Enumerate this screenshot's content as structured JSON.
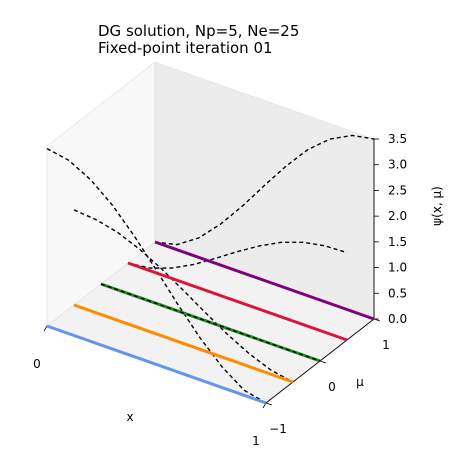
{
  "chart_data": {
    "type": "line",
    "title": "DG solution, Np=5, Ne=25",
    "subtitle": "Fixed-point iteration 01",
    "xlabel": "x",
    "ylabel": "μ",
    "zlabel": "ψ(x, μ)",
    "xlim": [
      0,
      1
    ],
    "ylim": [
      -1,
      1
    ],
    "zlim": [
      0,
      3.5
    ],
    "x_ticks": [
      "0",
      "1"
    ],
    "y_ticks": [
      "−1",
      "0",
      "1"
    ],
    "z_ticks": [
      "0.0",
      "0.5",
      "1.0",
      "1.5",
      "2.0",
      "2.5",
      "3.0",
      "3.5"
    ],
    "series": [
      {
        "mu": -1.0,
        "color": "#6495ED",
        "x": [
          0,
          1
        ],
        "z": [
          0,
          0
        ]
      },
      {
        "mu": -0.5,
        "color": "#FF8C00",
        "x": [
          0,
          1
        ],
        "z": [
          0,
          0
        ]
      },
      {
        "mu": 0.0,
        "color": "#228B22",
        "x": [
          0,
          1
        ],
        "z": [
          0,
          0
        ]
      },
      {
        "mu": 0.5,
        "color": "#DC143C",
        "x": [
          0,
          1
        ],
        "z": [
          0,
          0
        ]
      },
      {
        "mu": 1.0,
        "color": "#800080",
        "x": [
          0,
          1
        ],
        "z": [
          0,
          0
        ]
      }
    ],
    "exact_curves": [
      {
        "mu": -1.0,
        "x": [
          0.0,
          0.1,
          0.2,
          0.3,
          0.4,
          0.5,
          0.6,
          0.7,
          0.8,
          0.9,
          1.0
        ],
        "z": [
          3.45,
          3.37,
          3.14,
          2.79,
          2.34,
          1.83,
          1.3,
          0.81,
          0.4,
          0.1,
          0.0
        ]
      },
      {
        "mu": -0.5,
        "x": [
          0.0,
          0.1,
          0.2,
          0.3,
          0.4,
          0.5,
          0.6,
          0.7,
          0.8,
          0.9,
          1.0
        ],
        "z": [
          1.85,
          1.81,
          1.71,
          1.53,
          1.3,
          1.03,
          0.75,
          0.48,
          0.25,
          0.08,
          0.0
        ]
      },
      {
        "mu": 0.0,
        "x": [
          0.0,
          0.1,
          0.2,
          0.3,
          0.4,
          0.5,
          0.6,
          0.7,
          0.8,
          0.9,
          1.0
        ],
        "z": [
          0.0,
          0.0,
          0.0,
          0.0,
          0.0,
          0.0,
          0.0,
          0.0,
          0.0,
          0.0,
          0.0
        ]
      },
      {
        "mu": 0.5,
        "x": [
          0.0,
          0.1,
          0.2,
          0.3,
          0.4,
          0.5,
          0.6,
          0.7,
          0.8,
          0.9,
          1.0
        ],
        "z": [
          0.0,
          0.05,
          0.2,
          0.42,
          0.69,
          0.97,
          1.23,
          1.45,
          1.6,
          1.68,
          1.7
        ]
      },
      {
        "mu": 1.0,
        "x": [
          0.0,
          0.1,
          0.2,
          0.3,
          0.4,
          0.5,
          0.6,
          0.7,
          0.8,
          0.9,
          1.0
        ],
        "z": [
          0.0,
          0.1,
          0.38,
          0.8,
          1.3,
          1.85,
          2.38,
          2.85,
          3.2,
          3.42,
          3.5
        ]
      }
    ]
  }
}
